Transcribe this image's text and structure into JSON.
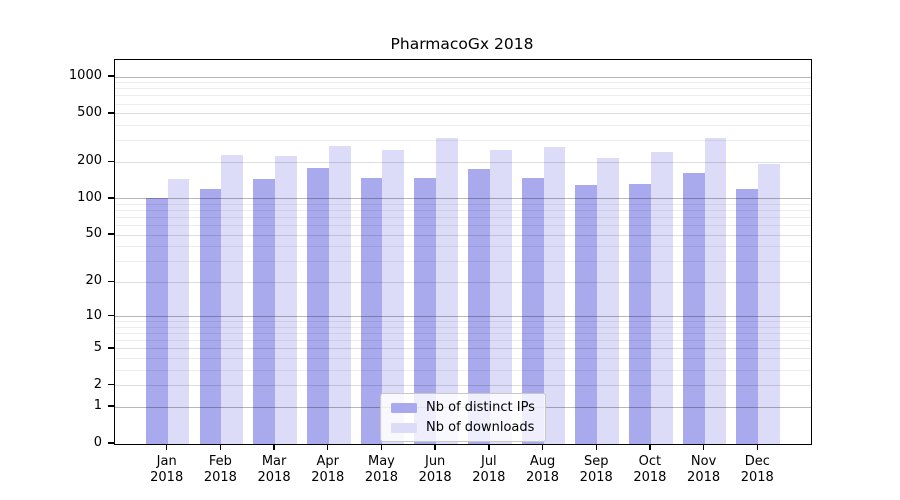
{
  "title": "PharmacoGx 2018",
  "chart_data": {
    "type": "bar",
    "categories": [
      "Jan 2018",
      "Feb 2018",
      "Mar 2018",
      "Apr 2018",
      "May 2018",
      "Jun 2018",
      "Jul 2018",
      "Aug 2018",
      "Sep 2018",
      "Oct 2018",
      "Nov 2018",
      "Dec 2018"
    ],
    "series": [
      {
        "name": "Nb of distinct IPs",
        "color": "#a9a9ee",
        "values": [
          102,
          120,
          145,
          181,
          148,
          149,
          175,
          149,
          129,
          132,
          163,
          120
        ]
      },
      {
        "name": "Nb of downloads",
        "color": "#dcdcf8",
        "values": [
          145,
          230,
          226,
          271,
          254,
          319,
          252,
          269,
          217,
          244,
          314,
          193
        ]
      }
    ],
    "yscale": "log1p",
    "yticks": [
      0,
      1,
      2,
      5,
      10,
      20,
      50,
      100,
      200,
      500,
      1000
    ],
    "ylim": [
      0,
      1390
    ],
    "grid": true,
    "legend_position": "lower center",
    "xlabel": "",
    "ylabel": ""
  }
}
